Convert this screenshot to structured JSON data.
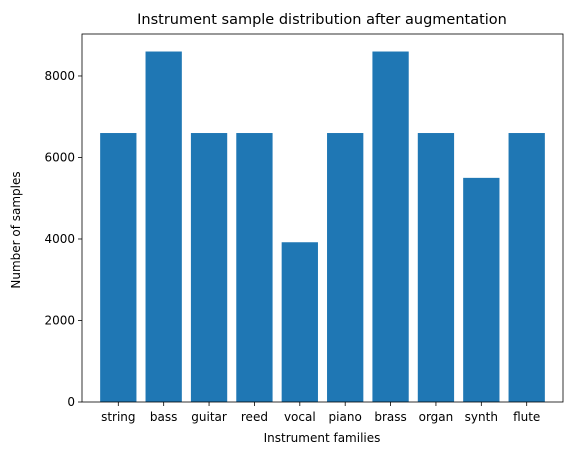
{
  "chart_data": {
    "type": "bar",
    "title": "Instrument sample distribution after augmentation",
    "xlabel": "Instrument families",
    "ylabel": "Number of samples",
    "categories": [
      "string",
      "bass",
      "guitar",
      "reed",
      "vocal",
      "piano",
      "brass",
      "organ",
      "synth",
      "flute"
    ],
    "values": [
      6600,
      8600,
      6600,
      6600,
      3920,
      6600,
      8600,
      6600,
      5500,
      6600
    ],
    "yticks": [
      0,
      2000,
      4000,
      6000,
      8000
    ],
    "ytick_labels": [
      "0",
      "2000",
      "4000",
      "6000",
      "8000"
    ],
    "ylim": [
      0,
      9030
    ],
    "grid": false,
    "legend": "none",
    "bar_color": "#1f77b4"
  }
}
